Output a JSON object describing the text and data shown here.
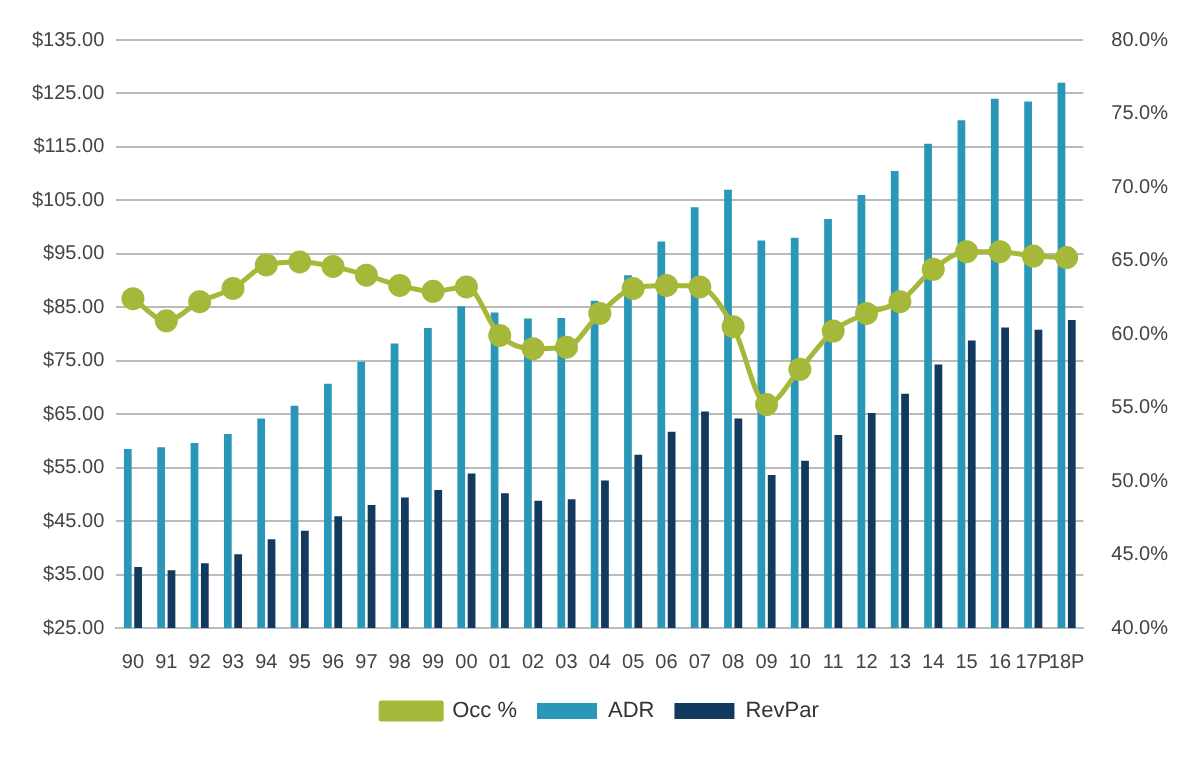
{
  "chart_data": {
    "type": "bar",
    "categories": [
      "90",
      "91",
      "92",
      "93",
      "94",
      "95",
      "96",
      "97",
      "98",
      "99",
      "00",
      "01",
      "02",
      "03",
      "04",
      "05",
      "06",
      "07",
      "08",
      "09",
      "10",
      "11",
      "12",
      "13",
      "14",
      "15",
      "16",
      "17P",
      "18P"
    ],
    "series": [
      {
        "name": "ADR",
        "color": "#2a97b8",
        "values": [
          58.5,
          58.8,
          59.6,
          61.3,
          64.2,
          66.6,
          70.7,
          74.8,
          78.2,
          81.1,
          85.2,
          84.0,
          82.9,
          83.0,
          86.2,
          91.0,
          97.3,
          103.7,
          107.0,
          97.5,
          98.0,
          101.5,
          106.0,
          110.5,
          115.6,
          120.0,
          124.0,
          123.5,
          127.0
        ]
      },
      {
        "name": "RevPar",
        "color": "#12395e",
        "values": [
          36.4,
          35.8,
          37.1,
          38.8,
          41.6,
          43.2,
          45.9,
          48.0,
          49.4,
          50.8,
          53.9,
          50.2,
          48.8,
          49.1,
          52.6,
          57.4,
          61.7,
          65.5,
          64.2,
          53.6,
          56.3,
          61.1,
          65.2,
          68.8,
          74.3,
          78.8,
          81.2,
          80.8,
          82.6
        ]
      },
      {
        "name": "Occ %",
        "type": "line",
        "axis": "y2",
        "color": "#a6b83a",
        "marker": "circle",
        "values": [
          62.4,
          60.9,
          62.2,
          63.1,
          64.7,
          64.9,
          64.6,
          64.0,
          63.3,
          62.9,
          63.2,
          59.9,
          59.0,
          59.1,
          61.4,
          63.1,
          63.3,
          63.2,
          60.5,
          55.2,
          57.6,
          60.2,
          61.4,
          62.2,
          64.4,
          65.6,
          65.6,
          65.3,
          65.2
        ]
      }
    ],
    "ylim": [
      25,
      135
    ],
    "yticks": [
      {
        "value": 25,
        "label": "$25.00"
      },
      {
        "value": 35,
        "label": "$35.00"
      },
      {
        "value": 45,
        "label": "$45.00"
      },
      {
        "value": 55,
        "label": "$55.00"
      },
      {
        "value": 65,
        "label": "$65.00"
      },
      {
        "value": 75,
        "label": "$75.00"
      },
      {
        "value": 85,
        "label": "$85.00"
      },
      {
        "value": 95,
        "label": "$95.00"
      },
      {
        "value": 105,
        "label": "$105.00"
      },
      {
        "value": 115,
        "label": "$115.00"
      },
      {
        "value": 125,
        "label": "$125.00"
      },
      {
        "value": 135,
        "label": "$135.00"
      }
    ],
    "y2lim": [
      40,
      80
    ],
    "y2ticks": [
      {
        "value": 40,
        "label": "40.0%"
      },
      {
        "value": 45,
        "label": "45.0%"
      },
      {
        "value": 50,
        "label": "50.0%"
      },
      {
        "value": 55,
        "label": "55.0%"
      },
      {
        "value": 60,
        "label": "60.0%"
      },
      {
        "value": 65,
        "label": "65.0%"
      },
      {
        "value": 70,
        "label": "70.0%"
      },
      {
        "value": 75,
        "label": "75.0%"
      },
      {
        "value": 80,
        "label": "80.0%"
      }
    ],
    "grid": "y",
    "legend": "bottom"
  }
}
